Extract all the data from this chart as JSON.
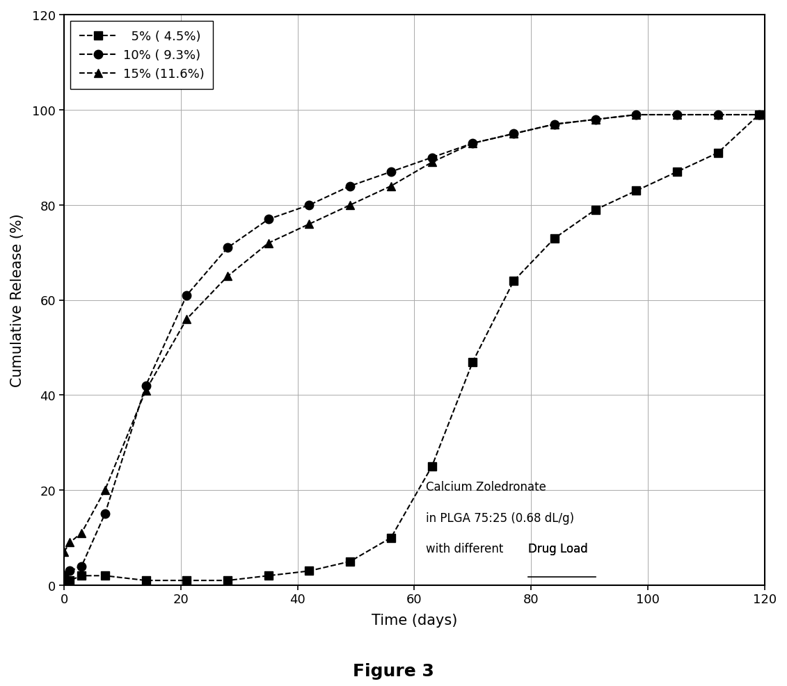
{
  "title": "Figure 3",
  "xlabel": "Time (days)",
  "ylabel": "Cumulative Release (%)",
  "annotation_line1": "Calcium Zoledronate",
  "annotation_line2": "in PLGA 75:25 (0.68 dL/g)",
  "annotation_line3_pre": "with different ",
  "annotation_line3_ul": "Drug Load",
  "xlim": [
    0,
    120
  ],
  "ylim": [
    0,
    120
  ],
  "xticks": [
    0,
    20,
    40,
    60,
    80,
    100,
    120
  ],
  "yticks": [
    0,
    20,
    40,
    60,
    80,
    100,
    120
  ],
  "series": [
    {
      "label": "  5% ( 4.5%)",
      "marker": "s",
      "color": "#000000",
      "x": [
        0,
        1,
        3,
        7,
        14,
        21,
        28,
        35,
        42,
        49,
        56,
        63,
        70,
        77,
        84,
        91,
        98,
        105,
        112,
        119
      ],
      "y": [
        1,
        1,
        2,
        2,
        1,
        1,
        1,
        2,
        3,
        5,
        10,
        25,
        47,
        64,
        73,
        79,
        83,
        87,
        91,
        99
      ]
    },
    {
      "label": "10% ( 9.3%)",
      "marker": "o",
      "color": "#000000",
      "x": [
        0,
        1,
        3,
        7,
        14,
        21,
        28,
        35,
        42,
        49,
        56,
        63,
        70,
        77,
        84,
        91,
        98,
        105,
        112,
        119
      ],
      "y": [
        2,
        3,
        4,
        15,
        42,
        61,
        71,
        77,
        80,
        84,
        87,
        90,
        93,
        95,
        97,
        98,
        99,
        99,
        99,
        99
      ]
    },
    {
      "label": "15% (11.6%)",
      "marker": "^",
      "color": "#000000",
      "x": [
        0,
        1,
        3,
        7,
        14,
        21,
        28,
        35,
        42,
        49,
        56,
        63,
        70,
        77,
        84,
        91,
        98,
        105,
        112,
        119
      ],
      "y": [
        7,
        9,
        11,
        20,
        41,
        56,
        65,
        72,
        76,
        80,
        84,
        89,
        93,
        95,
        97,
        98,
        99,
        99,
        99,
        99
      ]
    }
  ],
  "background_color": "#ffffff",
  "grid_color": "#aaaaaa",
  "fig_width": 11.31,
  "fig_height": 9.876,
  "dpi": 100
}
